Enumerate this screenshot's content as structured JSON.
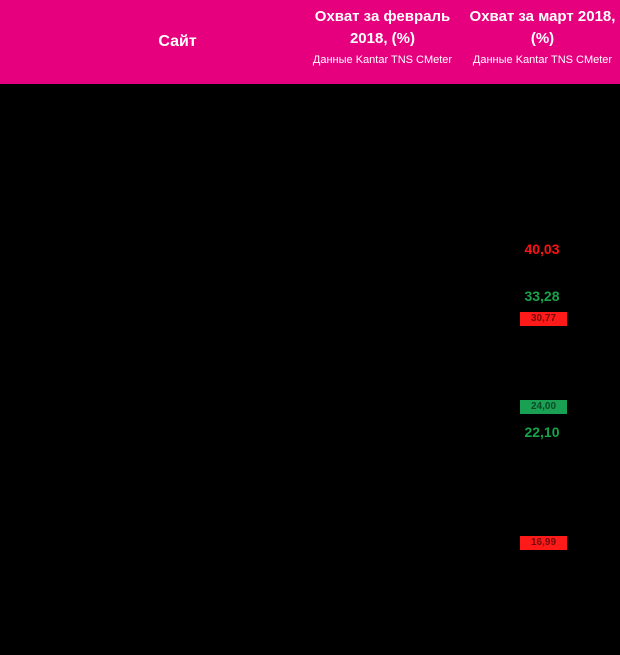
{
  "header": {
    "site_label": "Сайт",
    "feb": {
      "title": "Охват за февраль 2018, (%)",
      "source": "Данные Kantar TNS CMeter"
    },
    "mar": {
      "title": "Охват за март 2018, (%)",
      "source": "Данные Kantar TNS CMeter"
    }
  },
  "march_values": [
    {
      "text": "40,03",
      "color": "#ff1111"
    },
    {
      "text": "33,28",
      "color": "#16a34a"
    },
    {
      "text": "22,10",
      "color": "#16a34a"
    }
  ],
  "march_badges": [
    {
      "text": "30,77",
      "color": "#ff1a1a"
    },
    {
      "text": "24,00",
      "color": "#1aa053"
    },
    {
      "text": "16,99",
      "color": "#ff1a1a"
    }
  ]
}
